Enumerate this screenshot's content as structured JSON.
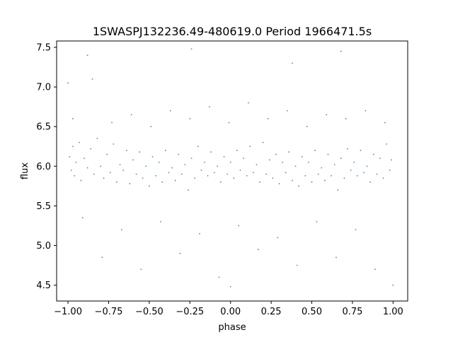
{
  "chart_data": {
    "type": "scatter",
    "title": "1SWASPJ132236.49-480619.0 Period 1966471.5s",
    "xlabel": "phase",
    "ylabel": "flux",
    "xlim": [
      -1.07,
      1.09
    ],
    "ylim": [
      4.3,
      7.58
    ],
    "xticks": [
      {
        "value": -1.0,
        "label": "−1.00"
      },
      {
        "value": -0.75,
        "label": "−0.75"
      },
      {
        "value": -0.5,
        "label": "−0.50"
      },
      {
        "value": -0.25,
        "label": "−0.25"
      },
      {
        "value": 0.0,
        "label": "0.00"
      },
      {
        "value": 0.25,
        "label": "0.25"
      },
      {
        "value": 0.5,
        "label": "0.50"
      },
      {
        "value": 0.75,
        "label": "0.75"
      },
      {
        "value": 1.0,
        "label": "1.00"
      }
    ],
    "yticks": [
      {
        "value": 4.5,
        "label": "4.5"
      },
      {
        "value": 5.0,
        "label": "5.0"
      },
      {
        "value": 5.5,
        "label": "5.5"
      },
      {
        "value": 6.0,
        "label": "6.0"
      },
      {
        "value": 6.5,
        "label": "6.5"
      },
      {
        "value": 7.0,
        "label": "7.0"
      },
      {
        "value": 7.5,
        "label": "7.5"
      }
    ],
    "grid": false,
    "legend": "none",
    "marker_color": "#1f77b4",
    "series": [
      {
        "points": [
          [
            -0.99,
            6.12
          ],
          [
            -0.98,
            5.95
          ],
          [
            -0.97,
            6.25
          ],
          [
            -0.96,
            5.88
          ],
          [
            -0.95,
            6.05
          ],
          [
            -0.93,
            6.3
          ],
          [
            -0.92,
            5.82
          ],
          [
            -0.9,
            6.1
          ],
          [
            -0.88,
            5.98
          ],
          [
            -0.86,
            6.22
          ],
          [
            -0.84,
            5.9
          ],
          [
            -0.82,
            6.35
          ],
          [
            -0.8,
            6.0
          ],
          [
            -0.78,
            5.85
          ],
          [
            -0.76,
            6.15
          ],
          [
            -0.74,
            5.92
          ],
          [
            -0.72,
            6.28
          ],
          [
            -0.7,
            5.8
          ],
          [
            -0.68,
            6.02
          ],
          [
            -0.66,
            5.95
          ],
          [
            -0.64,
            6.2
          ],
          [
            -0.62,
            5.78
          ],
          [
            -0.6,
            6.08
          ],
          [
            -0.58,
            5.9
          ],
          [
            -0.56,
            6.18
          ],
          [
            -0.54,
            5.85
          ],
          [
            -0.52,
            6.0
          ],
          [
            -0.5,
            5.75
          ],
          [
            -0.48,
            6.12
          ],
          [
            -0.46,
            5.88
          ],
          [
            -0.44,
            6.05
          ],
          [
            -0.42,
            5.8
          ],
          [
            -0.4,
            6.2
          ],
          [
            -0.38,
            5.92
          ],
          [
            -0.36,
            5.98
          ],
          [
            -0.34,
            5.82
          ],
          [
            -0.32,
            6.15
          ],
          [
            -0.3,
            5.9
          ],
          [
            -0.28,
            6.02
          ],
          [
            -0.26,
            5.7
          ],
          [
            -0.24,
            6.1
          ],
          [
            -0.22,
            5.85
          ],
          [
            -0.2,
            6.25
          ],
          [
            -0.18,
            5.95
          ],
          [
            -0.16,
            6.05
          ],
          [
            -0.14,
            5.88
          ],
          [
            -0.12,
            6.18
          ],
          [
            -0.1,
            5.92
          ],
          [
            -0.08,
            6.0
          ],
          [
            -0.06,
            5.8
          ],
          [
            -0.04,
            6.12
          ],
          [
            -0.02,
            5.9
          ],
          [
            0.0,
            6.05
          ],
          [
            0.02,
            5.85
          ],
          [
            0.04,
            6.2
          ],
          [
            0.06,
            5.95
          ],
          [
            0.08,
            6.1
          ],
          [
            0.1,
            5.88
          ],
          [
            0.12,
            6.25
          ],
          [
            0.14,
            5.92
          ],
          [
            0.16,
            6.02
          ],
          [
            0.18,
            5.8
          ],
          [
            0.2,
            6.3
          ],
          [
            0.22,
            5.9
          ],
          [
            0.24,
            6.08
          ],
          [
            0.26,
            5.85
          ],
          [
            0.28,
            6.15
          ],
          [
            0.3,
            5.78
          ],
          [
            0.32,
            6.05
          ],
          [
            0.34,
            5.92
          ],
          [
            0.36,
            6.18
          ],
          [
            0.38,
            5.82
          ],
          [
            0.4,
            6.0
          ],
          [
            0.42,
            5.75
          ],
          [
            0.44,
            6.12
          ],
          [
            0.46,
            5.88
          ],
          [
            0.48,
            6.05
          ],
          [
            0.5,
            5.8
          ],
          [
            0.52,
            6.2
          ],
          [
            0.54,
            5.9
          ],
          [
            0.56,
            5.98
          ],
          [
            0.58,
            5.82
          ],
          [
            0.6,
            6.15
          ],
          [
            0.62,
            5.88
          ],
          [
            0.64,
            6.02
          ],
          [
            0.66,
            5.7
          ],
          [
            0.68,
            6.1
          ],
          [
            0.7,
            5.85
          ],
          [
            0.72,
            6.22
          ],
          [
            0.74,
            5.95
          ],
          [
            0.76,
            6.05
          ],
          [
            0.78,
            5.88
          ],
          [
            0.8,
            6.2
          ],
          [
            0.82,
            5.92
          ],
          [
            0.84,
            6.0
          ],
          [
            0.86,
            5.8
          ],
          [
            0.88,
            6.15
          ],
          [
            0.9,
            5.9
          ],
          [
            0.92,
            6.1
          ],
          [
            0.94,
            5.85
          ],
          [
            0.96,
            6.28
          ],
          [
            0.98,
            5.95
          ],
          [
            0.99,
            6.08
          ],
          [
            -0.97,
            6.6
          ],
          [
            -0.91,
            5.35
          ],
          [
            -0.85,
            7.1
          ],
          [
            -0.79,
            4.85
          ],
          [
            -0.73,
            6.55
          ],
          [
            -0.67,
            5.2
          ],
          [
            -0.61,
            6.65
          ],
          [
            -0.55,
            4.7
          ],
          [
            -0.49,
            6.5
          ],
          [
            -0.43,
            5.3
          ],
          [
            -0.37,
            6.7
          ],
          [
            -0.31,
            4.9
          ],
          [
            -0.25,
            6.6
          ],
          [
            -0.19,
            5.15
          ],
          [
            -0.13,
            6.75
          ],
          [
            -0.07,
            4.6
          ],
          [
            -0.01,
            6.55
          ],
          [
            0.05,
            5.25
          ],
          [
            0.11,
            6.8
          ],
          [
            0.17,
            4.95
          ],
          [
            0.23,
            6.6
          ],
          [
            0.29,
            5.1
          ],
          [
            0.35,
            6.7
          ],
          [
            0.41,
            4.75
          ],
          [
            0.47,
            6.5
          ],
          [
            0.53,
            5.3
          ],
          [
            0.59,
            6.65
          ],
          [
            0.65,
            4.85
          ],
          [
            0.71,
            6.6
          ],
          [
            0.77,
            5.2
          ],
          [
            0.83,
            6.7
          ],
          [
            0.89,
            4.7
          ],
          [
            0.95,
            6.55
          ],
          [
            -1.0,
            7.05
          ],
          [
            1.0,
            4.5
          ],
          [
            -0.88,
            7.4
          ],
          [
            0.68,
            7.45
          ],
          [
            0.0,
            4.48
          ],
          [
            -0.24,
            7.48
          ],
          [
            0.38,
            7.3
          ]
        ]
      }
    ]
  }
}
